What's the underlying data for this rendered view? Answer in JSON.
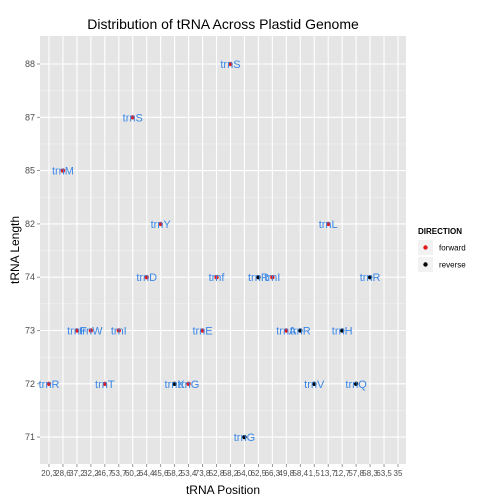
{
  "chart_data": {
    "type": "scatter",
    "title": "Distribution of tRNA Across Plastid Genome",
    "xlabel": "tRNA Position",
    "ylabel": "tRNA Length",
    "y_categories": [
      "71",
      "72",
      "73",
      "74",
      "82",
      "85",
      "87",
      "88"
    ],
    "x_ticks": [
      "20,3",
      "28,6",
      "37,2",
      "32,2",
      "46,7",
      "53,7",
      "60,2",
      "64,4",
      "45,6",
      "58,2",
      "53,4",
      "73,8",
      "52,8",
      "58,2",
      "64,0",
      "62,5",
      "66,3",
      "49,8",
      "58,4",
      "1,5",
      "13,7",
      "12,7",
      "57,8",
      "58,3",
      "63,5",
      "35"
    ],
    "x_ticks_note": "",
    "legend": {
      "title": "DIRECTION",
      "position": "right",
      "entries": [
        {
          "name": "forward",
          "color": "#e31a1c"
        },
        {
          "name": "reverse",
          "color": "#000000"
        }
      ]
    },
    "grid": true,
    "points": [
      {
        "label": "trnR",
        "x": 0,
        "y": "72",
        "direction": "forward"
      },
      {
        "label": "trnM",
        "x": 1,
        "y": "85",
        "direction": "forward"
      },
      {
        "label": "trnF",
        "x": 2,
        "y": "73",
        "direction": "forward"
      },
      {
        "label": "trnW",
        "x": 3,
        "y": "73",
        "direction": "forward"
      },
      {
        "label": "trnT",
        "x": 4,
        "y": "72",
        "direction": "forward"
      },
      {
        "label": "trnI",
        "x": 5,
        "y": "73",
        "direction": "forward"
      },
      {
        "label": "trnS",
        "x": 6,
        "y": "87",
        "direction": "forward"
      },
      {
        "label": "trnD",
        "x": 7,
        "y": "74",
        "direction": "forward"
      },
      {
        "label": "trnY",
        "x": 8,
        "y": "82",
        "direction": "forward"
      },
      {
        "label": "trnK",
        "x": 9,
        "y": "72",
        "direction": "reverse"
      },
      {
        "label": "trnG",
        "x": 10,
        "y": "72",
        "direction": "forward"
      },
      {
        "label": "trnE",
        "x": 11,
        "y": "73",
        "direction": "forward"
      },
      {
        "label": "trnf",
        "x": 12,
        "y": "74",
        "direction": "forward"
      },
      {
        "label": "trnS",
        "x": 13,
        "y": "88",
        "direction": "forward"
      },
      {
        "label": "trnG",
        "x": 14,
        "y": "71",
        "direction": "reverse"
      },
      {
        "label": "trnR",
        "x": 15,
        "y": "74",
        "direction": "reverse"
      },
      {
        "label": "trnI",
        "x": 16,
        "y": "74",
        "direction": "forward"
      },
      {
        "label": "trnA",
        "x": 17,
        "y": "73",
        "direction": "forward"
      },
      {
        "label": "trnR",
        "x": 18,
        "y": "73",
        "direction": "reverse"
      },
      {
        "label": "trnV",
        "x": 19,
        "y": "72",
        "direction": "reverse"
      },
      {
        "label": "trnL",
        "x": 20,
        "y": "82",
        "direction": "forward"
      },
      {
        "label": "trnH",
        "x": 21,
        "y": "73",
        "direction": "reverse"
      },
      {
        "label": "trnQ",
        "x": 22,
        "y": "72",
        "direction": "reverse"
      },
      {
        "label": "trnR",
        "x": 23,
        "y": "74",
        "direction": "reverse"
      }
    ]
  }
}
